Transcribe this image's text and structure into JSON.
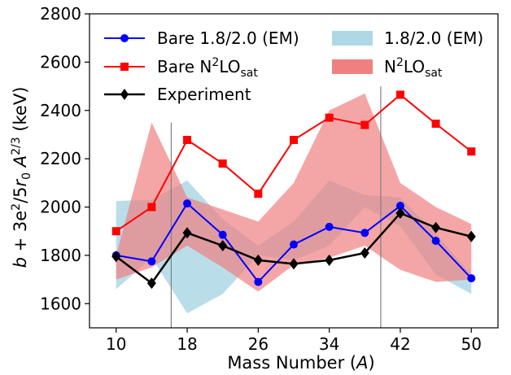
{
  "chart_data": {
    "type": "line",
    "xlabel": "Mass Number (A)",
    "ylabel": "b + 3e²/5r₀ A^{2/3} (keV)",
    "xlim": [
      7,
      53
    ],
    "ylim": [
      1500,
      2800
    ],
    "xticks": [
      10,
      18,
      26,
      34,
      42,
      50
    ],
    "yticks": [
      1600,
      1800,
      2000,
      2200,
      2400,
      2600,
      2800
    ],
    "vertical_lines": [
      16.2,
      39.8
    ],
    "grid": false,
    "legend_placement": "top",
    "bands": [
      {
        "name": "1.8/2.0 (EM)",
        "color": "#add8e6",
        "x": [
          10,
          14,
          18,
          22,
          26,
          30,
          34,
          38,
          42,
          46,
          50
        ],
        "lower": [
          1660,
          1790,
          1560,
          1640,
          1800,
          1780,
          1840,
          2000,
          1920,
          1720,
          1640
        ],
        "upper": [
          2025,
          2030,
          2110,
          1950,
          1840,
          1940,
          2110,
          2050,
          2040,
          1890,
          1720
        ]
      },
      {
        "name": "N²LO_sat",
        "color": "#f08080",
        "x": [
          10,
          14,
          18,
          22,
          26,
          30,
          34,
          38,
          42,
          46,
          50
        ],
        "lower": [
          1700,
          1750,
          1840,
          1750,
          1650,
          1760,
          1790,
          1840,
          1740,
          1690,
          1700
        ],
        "upper": [
          1800,
          2350,
          2040,
          1990,
          1940,
          2100,
          2400,
          2470,
          2100,
          2000,
          1930
        ]
      }
    ],
    "series": [
      {
        "name": "Bare 1.8/2.0 (EM)",
        "color": "#0000ff",
        "marker": "circle",
        "x": [
          10,
          14,
          18,
          22,
          26,
          30,
          34,
          38,
          42,
          46,
          50
        ],
        "values": [
          1800,
          1775,
          2015,
          1885,
          1690,
          1845,
          1918,
          1893,
          2005,
          1860,
          1705
        ]
      },
      {
        "name": "Bare N²LO_sat",
        "color": "#ff0000",
        "marker": "square",
        "x": [
          10,
          14,
          18,
          22,
          26,
          30,
          34,
          38,
          42,
          46,
          50
        ],
        "values": [
          1900,
          2000,
          2278,
          2180,
          2055,
          2278,
          2370,
          2340,
          2465,
          2345,
          2230
        ]
      },
      {
        "name": "Experiment",
        "color": "#000000",
        "marker": "diamond",
        "x": [
          10,
          14,
          18,
          22,
          26,
          30,
          34,
          38,
          42,
          46,
          50
        ],
        "values": [
          1795,
          1685,
          1893,
          1840,
          1780,
          1765,
          1780,
          1810,
          1975,
          1915,
          1878
        ]
      }
    ]
  }
}
